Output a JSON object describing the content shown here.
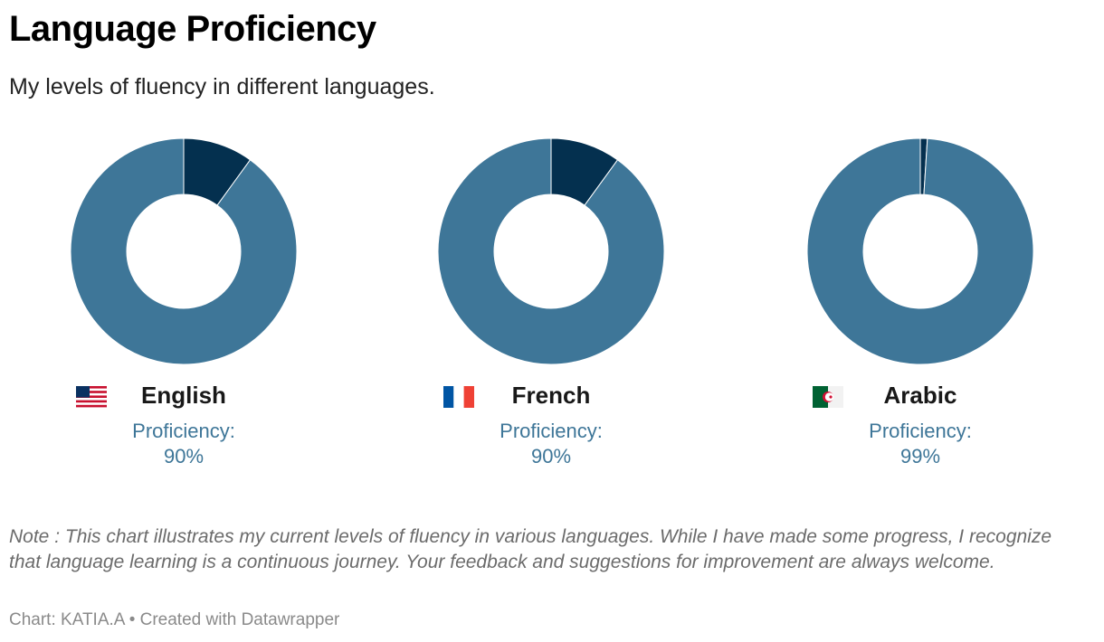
{
  "title": "Language Proficiency",
  "subtitle": "My levels of fluency in different languages.",
  "chart_data": [
    {
      "type": "pie",
      "donut": true,
      "label": "English",
      "flag": "us-flag",
      "proficiency_label": "Proficiency:",
      "proficiency_text": "90%",
      "slices": [
        {
          "value": 90,
          "color": "#3e7698"
        },
        {
          "value": 10,
          "color": "#04304f"
        }
      ]
    },
    {
      "type": "pie",
      "donut": true,
      "label": "French",
      "flag": "fr-flag",
      "proficiency_label": "Proficiency:",
      "proficiency_text": "90%",
      "slices": [
        {
          "value": 90,
          "color": "#3e7698"
        },
        {
          "value": 10,
          "color": "#04304f"
        }
      ]
    },
    {
      "type": "pie",
      "donut": true,
      "label": "Arabic",
      "flag": "dz-flag",
      "proficiency_label": "Proficiency:",
      "proficiency_text": "99%",
      "slices": [
        {
          "value": 99,
          "color": "#3e7698"
        },
        {
          "value": 1,
          "color": "#04304f"
        }
      ]
    }
  ],
  "note": "Note : This chart illustrates my current levels of fluency in various languages. While I have made some progress, I recognize that language learning is a continuous journey. Your feedback and suggestions for improvement are always welcome.",
  "footer": "Chart: KATIA.A • Created with Datawrapper"
}
